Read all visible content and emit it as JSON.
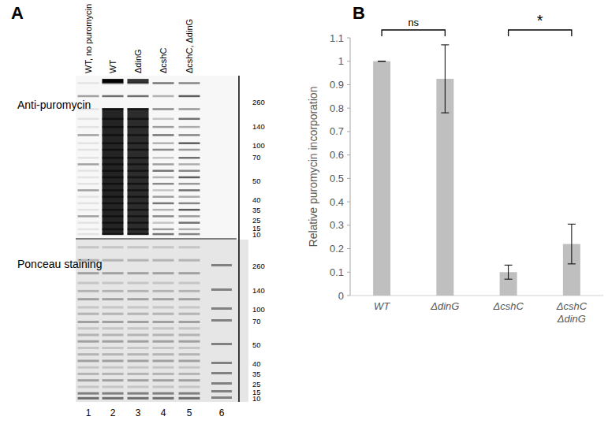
{
  "chart_data": {
    "type": "bar",
    "title": "B",
    "y_label": "Relative puromycin incorporation",
    "categories": [
      "WT",
      "ΔdinG",
      "ΔcshC",
      "ΔcshC ΔdinG"
    ],
    "values": [
      1,
      0.925,
      0.1,
      0.22
    ],
    "errors": [
      0,
      0.145,
      0.03,
      0.085
    ],
    "color": "#bfbfbf",
    "ylim": [
      0,
      1.1
    ],
    "yticks": [
      0,
      0.1,
      0.2,
      0.3,
      0.4,
      0.5,
      0.6,
      0.7,
      0.8,
      0.9,
      1,
      1.1
    ],
    "grid": false,
    "annotations": [
      {
        "text": "ns",
        "between": [
          0,
          1
        ]
      },
      {
        "text": "*",
        "between": [
          2,
          3
        ]
      }
    ]
  },
  "blot": {
    "title": "A",
    "lanes": [
      "WT, no puromycin",
      "WT",
      "ΔdinG",
      "ΔcshC",
      "ΔcshC, ΔdinG"
    ],
    "lane_numbers": [
      1,
      2,
      3,
      4,
      5,
      6
    ],
    "rows": [
      "Anti-puromycin",
      "Ponceau staining"
    ],
    "markers": [
      260,
      140,
      100,
      70,
      50,
      40,
      35,
      25,
      15,
      10
    ]
  }
}
